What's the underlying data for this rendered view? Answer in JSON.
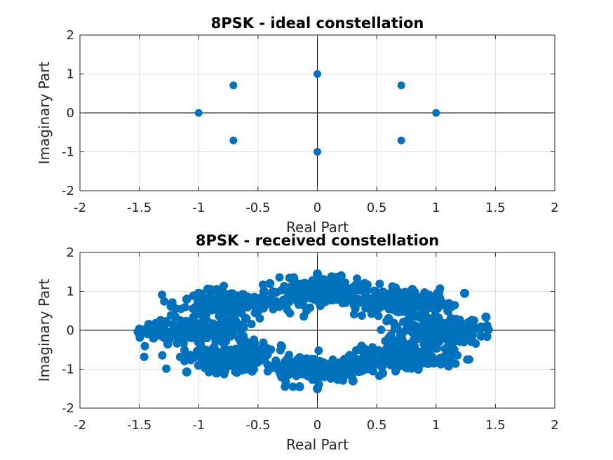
{
  "chart_data": [
    {
      "type": "scatter",
      "title": "8PSK - ideal constellation",
      "xlabel": "Real Part",
      "ylabel": "Imaginary Part",
      "xlim": [
        -2,
        2
      ],
      "ylim": [
        -2,
        2
      ],
      "xticks": [
        -2,
        -1.5,
        -1,
        -0.5,
        0,
        0.5,
        1,
        1.5,
        2
      ],
      "yticks": [
        -2,
        -1,
        0,
        1,
        2
      ],
      "xtick_labels": [
        "-2",
        "-1.5",
        "-1",
        "-0.5",
        "0",
        "0.5",
        "1",
        "1.5",
        "2"
      ],
      "ytick_labels": [
        "-2",
        "-1",
        "0",
        "1",
        "2"
      ],
      "grid": true,
      "axis_lines_through_origin": true,
      "color": "#0072BD",
      "points": [
        {
          "x": 1,
          "y": 0
        },
        {
          "x": 0.707,
          "y": 0.707
        },
        {
          "x": 0,
          "y": 1
        },
        {
          "x": -0.707,
          "y": 0.707
        },
        {
          "x": -1,
          "y": 0
        },
        {
          "x": -0.707,
          "y": -0.707
        },
        {
          "x": 0,
          "y": -1
        },
        {
          "x": 0.707,
          "y": -0.707
        }
      ]
    },
    {
      "type": "scatter",
      "title": "8PSK - received constellation",
      "xlabel": "Real Part",
      "ylabel": "Imaginary Part",
      "xlim": [
        -2,
        2
      ],
      "ylim": [
        -2,
        2
      ],
      "xticks": [
        -2,
        -1.5,
        -1,
        -0.5,
        0,
        0.5,
        1,
        1.5,
        2
      ],
      "yticks": [
        -2,
        -1,
        0,
        1,
        2
      ],
      "xtick_labels": [
        "-2",
        "-1.5",
        "-1",
        "-0.5",
        "0",
        "0.5",
        "1",
        "1.5",
        "2"
      ],
      "ytick_labels": [
        "-2",
        "-1",
        "0",
        "1",
        "2"
      ],
      "grid": true,
      "axis_lines_through_origin": true,
      "color": "#0072BD",
      "points": [
        {
          "x": -1.51,
          "y": -0.04
        },
        {
          "x": -1.45,
          "y": 0.02
        },
        {
          "x": -1.42,
          "y": 0.15
        },
        {
          "x": -1.38,
          "y": -0.2
        },
        {
          "x": -1.32,
          "y": 0.25
        },
        {
          "x": -1.26,
          "y": -0.35
        },
        {
          "x": -1.2,
          "y": 0.35
        },
        {
          "x": -1.1,
          "y": 0.8
        },
        {
          "x": -1.0,
          "y": 0.95
        },
        {
          "x": -0.9,
          "y": 1.05
        },
        {
          "x": -0.85,
          "y": -1.1
        },
        {
          "x": -1.1,
          "y": -1.07
        },
        {
          "x": -1.0,
          "y": -0.9
        },
        {
          "x": -0.95,
          "y": 0.5
        },
        {
          "x": -0.9,
          "y": 0.1
        },
        {
          "x": -0.8,
          "y": -0.3
        },
        {
          "x": -0.7,
          "y": 0.7
        },
        {
          "x": -0.7,
          "y": -0.7
        },
        {
          "x": -0.6,
          "y": 0.3
        },
        {
          "x": -0.6,
          "y": -0.3
        },
        {
          "x": -0.55,
          "y": -1.05
        },
        {
          "x": -0.45,
          "y": 1.0
        },
        {
          "x": -0.4,
          "y": 1.2
        },
        {
          "x": -0.3,
          "y": -1.2
        },
        {
          "x": -0.2,
          "y": 1.35
        },
        {
          "x": -0.15,
          "y": -1.45
        },
        {
          "x": 0.0,
          "y": 1.45
        },
        {
          "x": 0.0,
          "y": -1.5
        },
        {
          "x": 0.05,
          "y": 1.0
        },
        {
          "x": 0.1,
          "y": -1.0
        },
        {
          "x": 0.2,
          "y": 1.4
        },
        {
          "x": 0.3,
          "y": -1.3
        },
        {
          "x": 0.4,
          "y": 1.2
        },
        {
          "x": 0.55,
          "y": -1.1
        },
        {
          "x": 0.6,
          "y": 0.3
        },
        {
          "x": 0.6,
          "y": -0.3
        },
        {
          "x": 0.7,
          "y": 0.7
        },
        {
          "x": 0.7,
          "y": -0.7
        },
        {
          "x": 0.8,
          "y": 1.05
        },
        {
          "x": 0.85,
          "y": -1.0
        },
        {
          "x": 0.9,
          "y": 0.1
        },
        {
          "x": 1.0,
          "y": 0.9
        },
        {
          "x": 1.05,
          "y": -0.85
        },
        {
          "x": 1.1,
          "y": 0.5
        },
        {
          "x": 1.15,
          "y": -0.5
        },
        {
          "x": 1.24,
          "y": 0.95
        },
        {
          "x": 1.3,
          "y": 0.25
        },
        {
          "x": 1.38,
          "y": -0.15
        },
        {
          "x": 1.42,
          "y": 0.34
        },
        {
          "x": 1.44,
          "y": 0.02
        }
      ]
    }
  ]
}
